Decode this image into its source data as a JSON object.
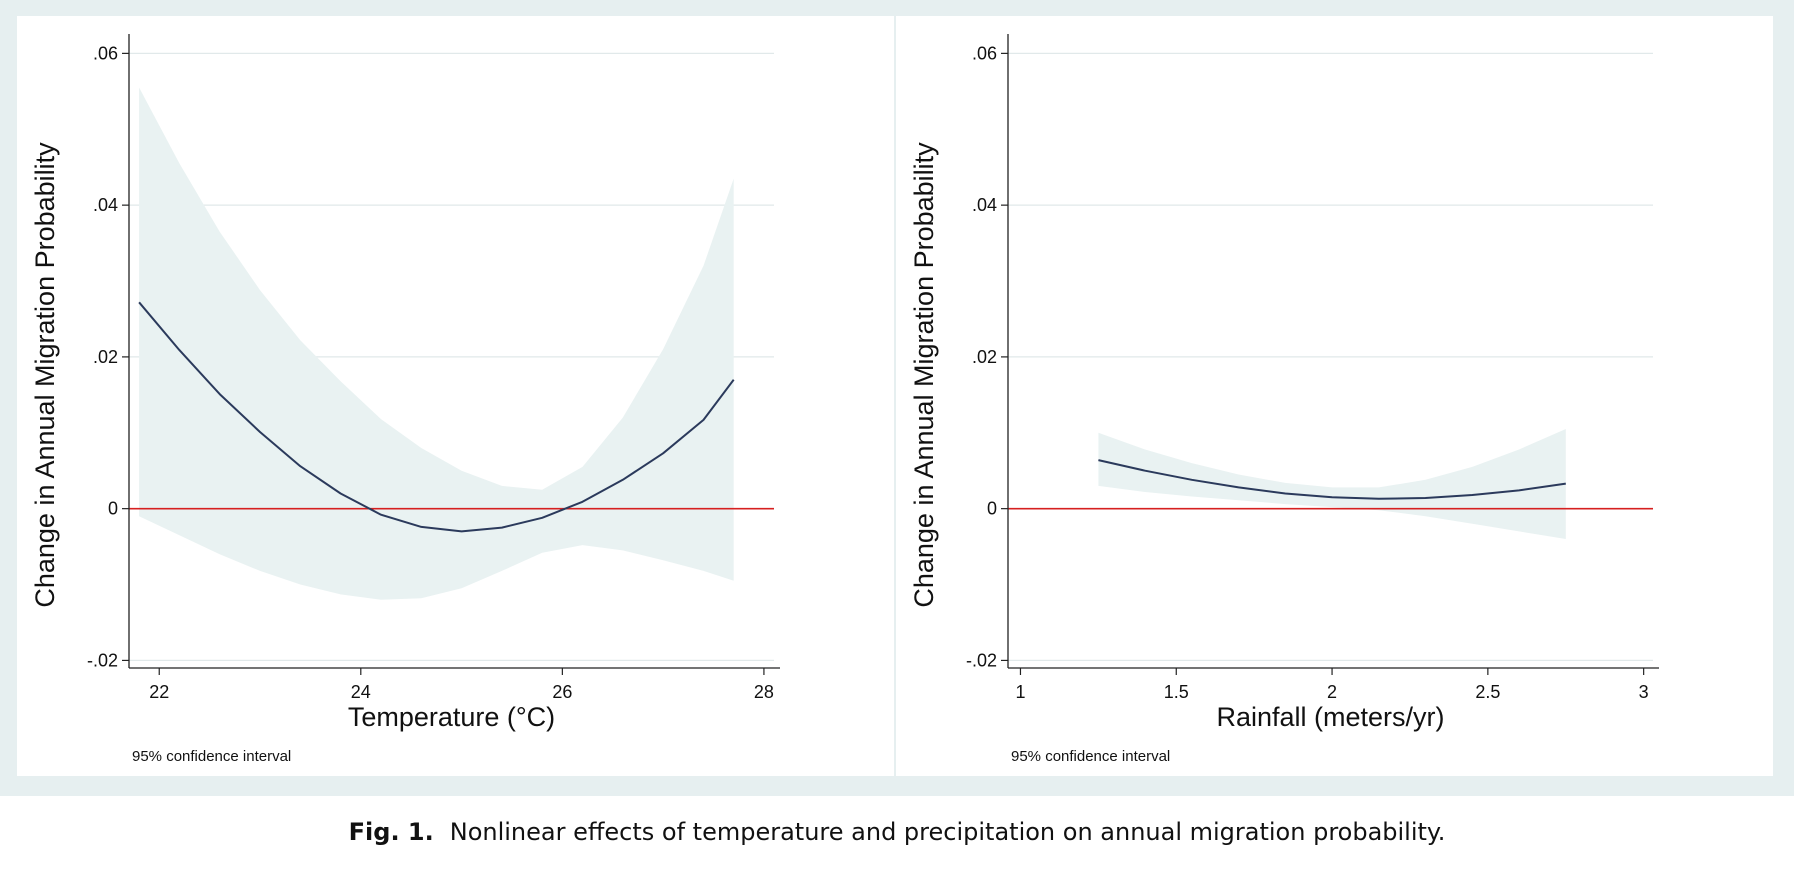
{
  "figure": {
    "caption_label": "Fig. 1.",
    "caption_text": "Nonlinear effects of temperature and precipitation on annual migration probability."
  },
  "colors": {
    "frame": "#e6eff0",
    "ci_band": "#e9f2f2",
    "fit_line": "#2b3a5c",
    "zero_line": "#d62020",
    "grid": "#e1e9ea",
    "axis": "#222222"
  },
  "chart_data": [
    {
      "type": "line",
      "ylabel": "Change in Annual Migration Probability",
      "xlabel": "Temperature (°C)",
      "note": "95% confidence interval",
      "xlim": [
        21.7,
        28.1
      ],
      "ylim": [
        -0.021,
        0.0615
      ],
      "xticks": [
        22,
        24,
        26,
        28
      ],
      "xtick_labels": [
        "22",
        "24",
        "26",
        "28"
      ],
      "yticks": [
        -0.02,
        0,
        0.02,
        0.04,
        0.06
      ],
      "ytick_labels": [
        "-.02",
        "0",
        ".02",
        ".04",
        ".06"
      ],
      "grid": true,
      "reference_line_y": 0,
      "series": [
        {
          "role": "fit",
          "x": [
            21.8,
            22.2,
            22.6,
            23.0,
            23.4,
            23.8,
            24.2,
            24.6,
            25.0,
            25.4,
            25.8,
            26.2,
            26.6,
            27.0,
            27.4,
            27.7
          ],
          "y": [
            0.0272,
            0.0209,
            0.0151,
            0.0101,
            0.0056,
            0.002,
            -0.0008,
            -0.0024,
            -0.003,
            -0.0025,
            -0.0012,
            0.0009,
            0.0038,
            0.0073,
            0.0117,
            0.017
          ]
        },
        {
          "role": "ci_upper",
          "x": [
            21.8,
            22.2,
            22.6,
            23.0,
            23.4,
            23.8,
            24.2,
            24.6,
            25.0,
            25.4,
            25.8,
            26.2,
            26.6,
            27.0,
            27.4,
            27.7
          ],
          "y": [
            0.0555,
            0.0455,
            0.0365,
            0.0288,
            0.0222,
            0.0168,
            0.0118,
            0.008,
            0.005,
            0.003,
            0.0025,
            0.0055,
            0.012,
            0.021,
            0.032,
            0.0435
          ]
        },
        {
          "role": "ci_lower",
          "x": [
            21.8,
            22.2,
            22.6,
            23.0,
            23.4,
            23.8,
            24.2,
            24.6,
            25.0,
            25.4,
            25.8,
            26.2,
            26.6,
            27.0,
            27.4,
            27.7
          ],
          "y": [
            -0.001,
            -0.0035,
            -0.006,
            -0.0082,
            -0.01,
            -0.0113,
            -0.012,
            -0.0118,
            -0.0105,
            -0.0082,
            -0.0058,
            -0.0048,
            -0.0055,
            -0.0068,
            -0.0082,
            -0.0095
          ]
        }
      ]
    },
    {
      "type": "line",
      "ylabel": "Change in Annual Migration Probability",
      "xlabel": "Rainfall (meters/yr)",
      "note": "95% confidence interval",
      "xlim": [
        0.96,
        3.03
      ],
      "ylim": [
        -0.021,
        0.0615
      ],
      "xticks": [
        1,
        1.5,
        2,
        2.5,
        3
      ],
      "xtick_labels": [
        "1",
        "1.5",
        "2",
        "2.5",
        "3"
      ],
      "yticks": [
        -0.02,
        0,
        0.02,
        0.04,
        0.06
      ],
      "ytick_labels": [
        "-.02",
        "0",
        ".02",
        ".04",
        ".06"
      ],
      "grid": true,
      "reference_line_y": 0,
      "series": [
        {
          "role": "fit",
          "x": [
            1.25,
            1.4,
            1.55,
            1.7,
            1.85,
            2.0,
            2.15,
            2.3,
            2.45,
            2.6,
            2.75
          ],
          "y": [
            0.0064,
            0.005,
            0.0038,
            0.0028,
            0.002,
            0.0015,
            0.0013,
            0.0014,
            0.0018,
            0.0024,
            0.0033
          ]
        },
        {
          "role": "ci_upper",
          "x": [
            1.25,
            1.4,
            1.55,
            1.7,
            1.85,
            2.0,
            2.15,
            2.3,
            2.45,
            2.6,
            2.75
          ],
          "y": [
            0.01,
            0.0078,
            0.006,
            0.0045,
            0.0034,
            0.0028,
            0.0028,
            0.0038,
            0.0055,
            0.0078,
            0.0105
          ]
        },
        {
          "role": "ci_lower",
          "x": [
            1.25,
            1.4,
            1.55,
            1.7,
            1.85,
            2.0,
            2.15,
            2.3,
            2.45,
            2.6,
            2.75
          ],
          "y": [
            0.003,
            0.0022,
            0.0016,
            0.0011,
            0.0006,
            0.0002,
            -0.0002,
            -0.001,
            -0.002,
            -0.003,
            -0.004
          ]
        }
      ]
    }
  ]
}
